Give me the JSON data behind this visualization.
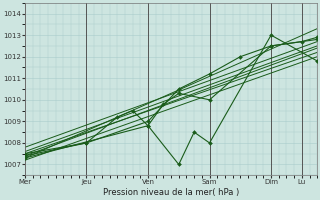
{
  "title": "Pression niveau de la mer( hPa )",
  "bg_color": "#cde5e0",
  "grid_color": "#aacccc",
  "line_color": "#1a5c1a",
  "ylim": [
    1006.5,
    1014.5
  ],
  "yticks": [
    1007,
    1008,
    1009,
    1010,
    1011,
    1012,
    1013,
    1014
  ],
  "day_labels": [
    "Mer",
    "Jeu",
    "Ven",
    "Sam",
    "Dim",
    "Lu"
  ],
  "day_positions": [
    0,
    48,
    96,
    144,
    192,
    216
  ],
  "total_hours": 228,
  "series": [
    {
      "x": [
        0,
        228
      ],
      "y": [
        1007.3,
        1013.3
      ],
      "markers": false
    },
    {
      "x": [
        0,
        228
      ],
      "y": [
        1007.5,
        1012.2
      ],
      "markers": false
    },
    {
      "x": [
        0,
        228
      ],
      "y": [
        1007.6,
        1012.5
      ],
      "markers": false
    },
    {
      "x": [
        0,
        228
      ],
      "y": [
        1007.8,
        1012.7
      ],
      "markers": false
    },
    {
      "x": [
        0,
        228
      ],
      "y": [
        1007.4,
        1012.4
      ],
      "markers": false
    },
    {
      "x": [
        0,
        228
      ],
      "y": [
        1007.2,
        1012.0
      ],
      "markers": false
    },
    {
      "x": [
        0,
        96,
        120,
        132,
        144,
        192,
        228
      ],
      "y": [
        1007.3,
        1008.8,
        1007.0,
        1008.5,
        1008.0,
        1013.0,
        1011.8
      ],
      "markers": true
    },
    {
      "x": [
        0,
        48,
        72,
        84,
        96,
        108,
        120,
        144,
        192,
        228
      ],
      "y": [
        1007.5,
        1008.0,
        1009.2,
        1009.5,
        1008.8,
        1009.8,
        1010.3,
        1010.0,
        1012.5,
        1012.8
      ],
      "markers": true
    },
    {
      "x": [
        0,
        48,
        96,
        120,
        144,
        168,
        192,
        216,
        228
      ],
      "y": [
        1007.4,
        1008.0,
        1009.0,
        1010.5,
        1011.2,
        1012.0,
        1012.5,
        1012.7,
        1012.9
      ],
      "markers": true
    }
  ]
}
